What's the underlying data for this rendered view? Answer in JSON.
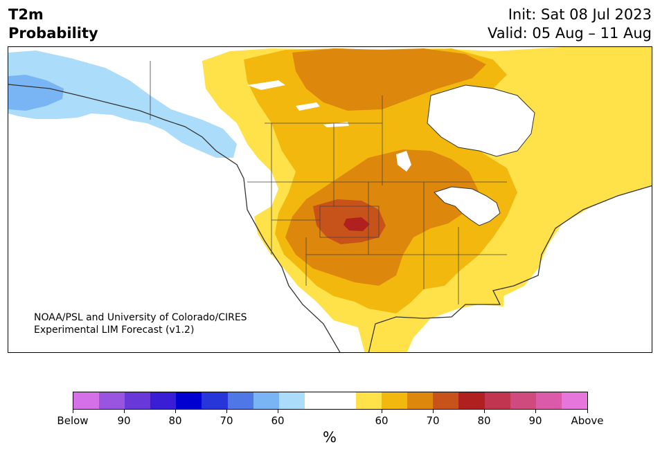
{
  "header": {
    "title_line1": "T2m",
    "title_line2": "Probability",
    "init_text": "Init: Sat 08 Jul 2023",
    "valid_text": "Valid: 05 Aug – 11 Aug"
  },
  "map": {
    "region": "North America",
    "credit_line1": "NOAA/PSL and University of Colorado/CIRES",
    "credit_line2": "Experimental LIM Forecast (v1.2)",
    "colors": {
      "ocean": "#ffffff",
      "below_60": "#abdcfa",
      "below_70": "#79b4f5",
      "above_60": "#ffe14a",
      "above_70": "#f2b80d",
      "above_80": "#de870d",
      "above_90": "#c7521a",
      "above_max": "#b0201f",
      "coast": "#333333"
    }
  },
  "colorbar": {
    "unit_label": "%",
    "colors": [
      "#d670e8",
      "#9a55e0",
      "#6938d8",
      "#3a1ed6",
      "#0000d0",
      "#2636d8",
      "#4f78e6",
      "#79b4f5",
      "#abdcfa",
      "#ffffff",
      "#ffffff",
      "#ffe14a",
      "#f2b80d",
      "#de870d",
      "#c7521a",
      "#b0201f",
      "#c23550",
      "#d04b7d",
      "#db5aaa",
      "#e675dc"
    ],
    "tick_labels": [
      "Below",
      "90",
      "80",
      "70",
      "60",
      "60",
      "70",
      "80",
      "90",
      "Above"
    ]
  }
}
